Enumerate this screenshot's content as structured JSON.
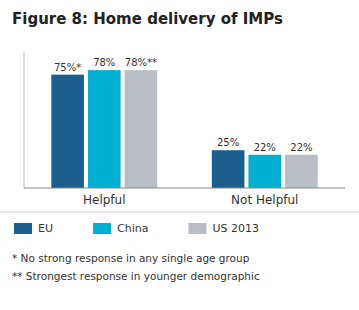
{
  "chart_data": {
    "type": "bar",
    "title": "Figure 8: Home delivery of IMPs",
    "categories": [
      "Helpful",
      "Not Helpful"
    ],
    "series": [
      {
        "name": "EU",
        "color": "#1c5f8e",
        "values": [
          75,
          25
        ],
        "value_labels": [
          "75%*",
          "25%"
        ]
      },
      {
        "name": "China",
        "color": "#00b0d0",
        "values": [
          78,
          22
        ],
        "value_labels": [
          "78%",
          "22%"
        ]
      },
      {
        "name": "US 2013",
        "color": "#b8bec4",
        "values": [
          78,
          22
        ],
        "value_labels": [
          "78%**",
          "22%"
        ]
      }
    ],
    "ylim": [
      0,
      90
    ],
    "grid": false,
    "data_labels": true,
    "tick_labels": "x",
    "legend": "bottom",
    "annotations": [
      "*  No strong response in any single age group",
      "** Strongest response in younger demographic"
    ]
  }
}
